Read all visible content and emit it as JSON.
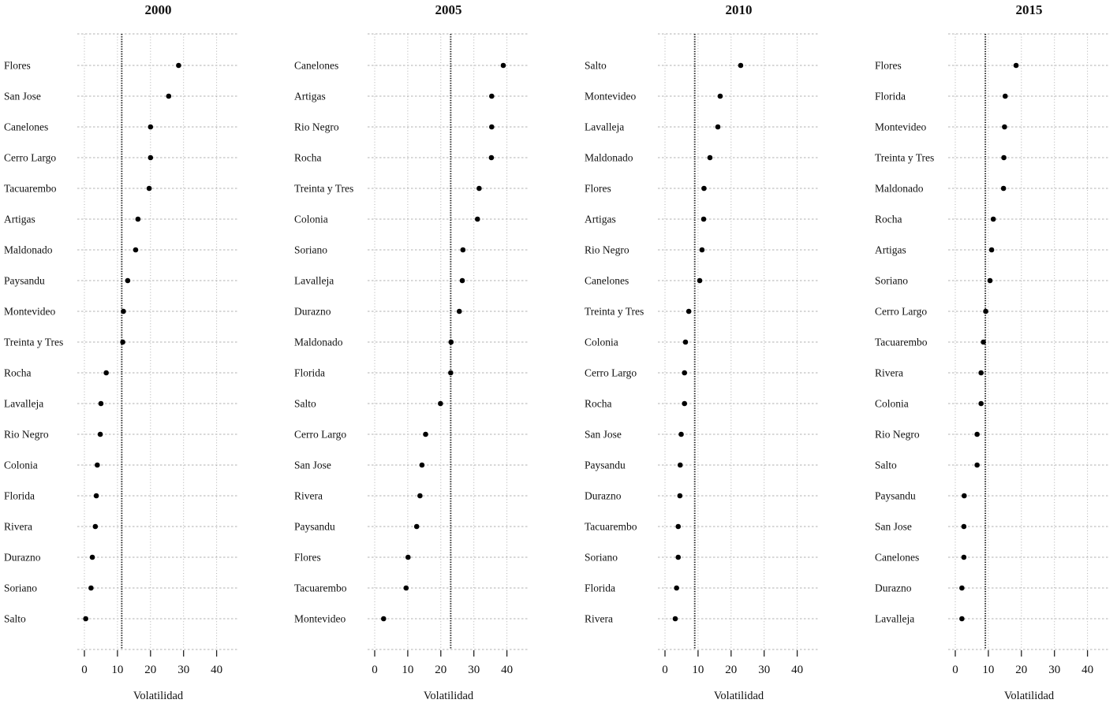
{
  "figure": {
    "description": "Four-panel dot plot of volatility by Uruguayan department",
    "xlabel": "Volatilidad"
  },
  "colors": {
    "background": "#ffffff",
    "dot": "#000000",
    "grid": "#b0b0b0",
    "ref_line": "#1a1a1a",
    "axis": "#222222",
    "text": "#111111"
  },
  "chart_data": [
    {
      "type": "scatter",
      "variant": "dotplot",
      "title": "2000",
      "xlabel": "Volatilidad",
      "xticks": [
        0,
        10,
        20,
        30,
        40
      ],
      "xlim": [
        -2.1,
        46.9
      ],
      "grid": true,
      "ref_line_x": 11.3,
      "categories": [
        "Flores",
        "San Jose",
        "Canelones",
        "Cerro Largo",
        "Tacuarembo",
        "Artigas",
        "Maldonado",
        "Paysandu",
        "Montevideo",
        "Treinta y Tres",
        "Rocha",
        "Lavalleja",
        "Rio Negro",
        "Colonia",
        "Florida",
        "Rivera",
        "Durazno",
        "Soriano",
        "Salto"
      ],
      "values": [
        28.5,
        25.5,
        20.0,
        20.0,
        19.6,
        16.2,
        15.5,
        13.1,
        11.8,
        11.6,
        6.6,
        5.0,
        4.8,
        3.9,
        3.6,
        3.3,
        2.4,
        2.0,
        0.4
      ]
    },
    {
      "type": "scatter",
      "variant": "dotplot",
      "title": "2005",
      "xlabel": "Volatilidad",
      "xticks": [
        0,
        10,
        20,
        30,
        40
      ],
      "xlim": [
        -2.1,
        46.9
      ],
      "grid": true,
      "ref_line_x": 23.0,
      "categories": [
        "Canelones",
        "Artigas",
        "Rio Negro",
        "Rocha",
        "Treinta y Tres",
        "Colonia",
        "Soriano",
        "Lavalleja",
        "Durazno",
        "Maldonado",
        "Florida",
        "Salto",
        "Cerro Largo",
        "San Jose",
        "Rivera",
        "Paysandu",
        "Flores",
        "Tacuarembo",
        "Montevideo"
      ],
      "values": [
        38.9,
        35.4,
        35.4,
        35.3,
        31.6,
        31.1,
        26.7,
        26.5,
        25.6,
        23.1,
        23.0,
        19.9,
        15.4,
        14.3,
        13.7,
        12.7,
        10.1,
        9.5,
        2.7
      ]
    },
    {
      "type": "scatter",
      "variant": "dotplot",
      "title": "2010",
      "xlabel": "Volatilidad",
      "xticks": [
        0,
        10,
        20,
        30,
        40
      ],
      "xlim": [
        -2.1,
        46.9
      ],
      "grid": true,
      "ref_line_x": 9.0,
      "categories": [
        "Salto",
        "Montevideo",
        "Lavalleja",
        "Maldonado",
        "Flores",
        "Artigas",
        "Rio Negro",
        "Canelones",
        "Treinta y Tres",
        "Colonia",
        "Cerro Largo",
        "Rocha",
        "San Jose",
        "Paysandu",
        "Durazno",
        "Tacuarembo",
        "Soriano",
        "Florida",
        "Rivera"
      ],
      "values": [
        22.9,
        16.7,
        16.0,
        13.6,
        11.8,
        11.7,
        11.2,
        10.5,
        7.2,
        6.2,
        5.9,
        5.9,
        4.9,
        4.6,
        4.5,
        4.0,
        4.0,
        3.5,
        3.1
      ]
    },
    {
      "type": "scatter",
      "variant": "dotplot",
      "title": "2015",
      "xlabel": "Volatilidad",
      "xticks": [
        0,
        10,
        20,
        30,
        40
      ],
      "xlim": [
        -2.1,
        46.9
      ],
      "grid": true,
      "ref_line_x": 9.1,
      "categories": [
        "Flores",
        "Florida",
        "Montevideo",
        "Treinta y Tres",
        "Maldonado",
        "Rocha",
        "Artigas",
        "Soriano",
        "Cerro Largo",
        "Tacuarembo",
        "Rivera",
        "Colonia",
        "Rio Negro",
        "Salto",
        "Paysandu",
        "San Jose",
        "Canelones",
        "Durazno",
        "Lavalleja"
      ],
      "values": [
        18.4,
        15.1,
        14.9,
        14.7,
        14.6,
        11.5,
        11.0,
        10.5,
        9.2,
        8.5,
        7.8,
        7.8,
        6.6,
        6.6,
        2.7,
        2.6,
        2.6,
        2.0,
        2.0
      ]
    }
  ]
}
